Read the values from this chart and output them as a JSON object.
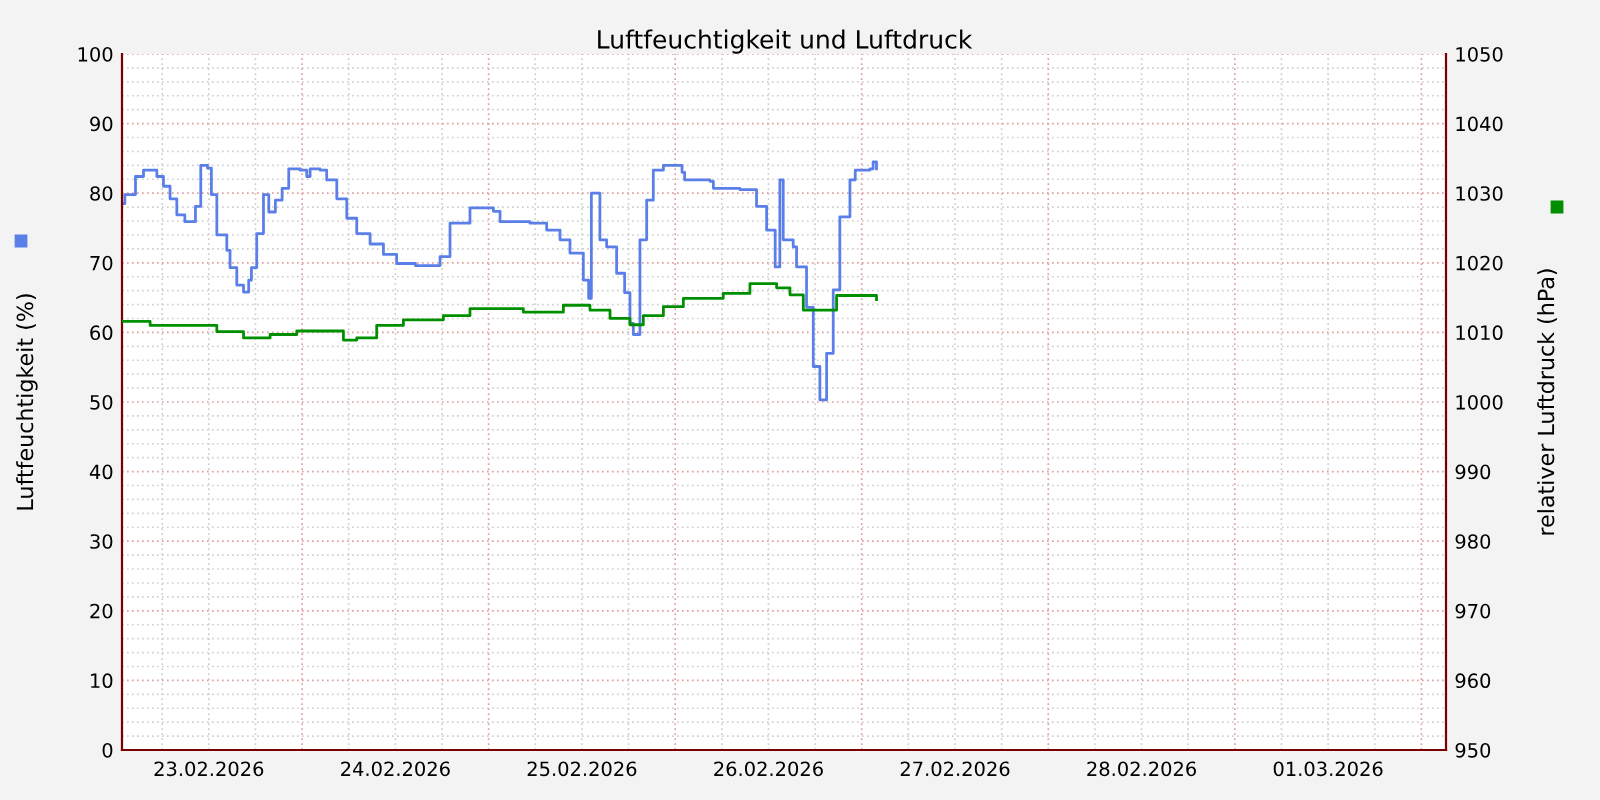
{
  "chart_data": {
    "type": "step",
    "title": "Luftfeuchtigkeit und Luftdruck",
    "ylabel": "Luftfeuchtigkeit (%)",
    "y2label": "relativer Luftdruck (hPa)",
    "xlim": [
      "2026-02-23T00:50",
      "2026-03-02T03:10"
    ],
    "xticks": [
      {
        "value": "2026-02-23T12:00",
        "label": "23.02.2026"
      },
      {
        "value": "2026-02-24T12:00",
        "label": "24.02.2026"
      },
      {
        "value": "2026-02-25T12:00",
        "label": "25.02.2026"
      },
      {
        "value": "2026-02-26T12:00",
        "label": "26.02.2026"
      },
      {
        "value": "2026-02-27T12:00",
        "label": "27.02.2026"
      },
      {
        "value": "2026-02-28T12:00",
        "label": "28.02.2026"
      },
      {
        "value": "2026-03-01T12:00",
        "label": "01.03.2026"
      }
    ],
    "ylim": [
      0,
      100
    ],
    "yticks": [
      0,
      10,
      20,
      30,
      40,
      50,
      60,
      70,
      80,
      90,
      100
    ],
    "y2lim": [
      950,
      1050
    ],
    "y2ticks": [
      950,
      960,
      970,
      980,
      990,
      1000,
      1010,
      1020,
      1030,
      1040,
      1050
    ],
    "grid": true,
    "series": [
      {
        "color": "#5b7fe8",
        "x": [
          "2026-02-23T00:51",
          "2026-02-23T01:12",
          "2026-02-23T02:34",
          "2026-02-23T03:36",
          "2026-02-23T04:17",
          "2026-02-23T05:19",
          "2026-02-23T06:10",
          "2026-02-23T07:01",
          "2026-02-23T07:53",
          "2026-02-23T08:55",
          "2026-02-23T09:46",
          "2026-02-23T10:17",
          "2026-02-23T10:58",
          "2026-02-23T11:50",
          "2026-02-23T12:20",
          "2026-02-23T13:02",
          "2026-02-23T14:19",
          "2026-02-23T14:44",
          "2026-02-23T15:36",
          "2026-02-23T16:28",
          "2026-02-23T17:08",
          "2026-02-23T17:29",
          "2026-02-23T18:10",
          "2026-02-23T19:02",
          "2026-02-23T19:43",
          "2026-02-23T20:34",
          "2026-02-23T21:26",
          "2026-02-23T22:17",
          "2026-02-23T23:45",
          "2026-02-24T00:36",
          "2026-02-24T01:02",
          "2026-02-24T02:19",
          "2026-02-24T03:10",
          "2026-02-24T04:28",
          "2026-02-24T05:45",
          "2026-02-24T07:02",
          "2026-02-24T08:45",
          "2026-02-24T10:28",
          "2026-02-24T12:10",
          "2026-02-24T14:35",
          "2026-02-24T16:53",
          "2026-02-24T17:45",
          "2026-02-24T19:02",
          "2026-02-24T21:36",
          "2026-02-25T00:37",
          "2026-02-25T01:28",
          "2026-02-25T05:19",
          "2026-02-25T07:28",
          "2026-02-25T09:11",
          "2026-02-25T10:28",
          "2026-02-25T12:11",
          "2026-02-25T12:52",
          "2026-02-25T13:13",
          "2026-02-25T13:54",
          "2026-02-25T14:19",
          "2026-02-25T15:11",
          "2026-02-25T16:28",
          "2026-02-25T17:30",
          "2026-02-25T18:11",
          "2026-02-25T18:37",
          "2026-02-25T19:28",
          "2026-02-25T20:20",
          "2026-02-25T21:11",
          "2026-02-25T22:29",
          "2026-02-26T00:53",
          "2026-02-26T01:13",
          "2026-02-26T04:29",
          "2026-02-26T04:55",
          "2026-02-26T08:20",
          "2026-02-26T10:28",
          "2026-02-26T11:46",
          "2026-02-26T12:52",
          "2026-02-26T13:28",
          "2026-02-26T13:54",
          "2026-02-26T15:11",
          "2026-02-26T15:37",
          "2026-02-26T16:54",
          "2026-02-26T17:46",
          "2026-02-26T18:37",
          "2026-02-26T19:29",
          "2026-02-26T20:20",
          "2026-02-26T21:11",
          "2026-02-26T22:29",
          "2026-02-26T23:10",
          "2026-02-27T01:03",
          "2026-02-27T01:28",
          "2026-02-27T01:54"
        ],
        "values": [
          78.5,
          79.8,
          82.4,
          83.3,
          83.3,
          82.4,
          81.0,
          79.2,
          76.9,
          75.9,
          75.9,
          78.1,
          84.0,
          83.6,
          79.8,
          74.0,
          71.8,
          69.3,
          66.8,
          65.8,
          67.5,
          69.3,
          74.2,
          79.8,
          77.3,
          79.0,
          80.7,
          83.5,
          83.3,
          82.4,
          83.5,
          83.3,
          81.9,
          79.2,
          76.4,
          74.2,
          72.7,
          71.2,
          69.9,
          69.6,
          69.6,
          70.9,
          75.7,
          77.9,
          77.4,
          75.9,
          75.7,
          74.7,
          73.3,
          71.4,
          67.5,
          64.9,
          80.0,
          80.0,
          73.3,
          72.3,
          68.5,
          65.7,
          61.3,
          59.7,
          73.3,
          79.0,
          83.3,
          84.0,
          83.0,
          81.9,
          81.7,
          80.7,
          80.5,
          78.1,
          74.7,
          69.4,
          81.9,
          73.3,
          72.3,
          69.4,
          63.6,
          55.1,
          50.3,
          57.0,
          66.1,
          76.6,
          81.9,
          83.3,
          83.5,
          84.5,
          83.5
        ]
      },
      {
        "color": "#008f00",
        "axis": "y2",
        "x": [
          "2026-02-23T00:51",
          "2026-02-23T04:27",
          "2026-02-23T09:36",
          "2026-02-23T13:02",
          "2026-02-23T16:28",
          "2026-02-23T19:53",
          "2026-02-23T23:19",
          "2026-02-24T02:44",
          "2026-02-24T05:19",
          "2026-02-24T07:02",
          "2026-02-24T09:36",
          "2026-02-24T13:02",
          "2026-02-24T18:11",
          "2026-02-24T21:36",
          "2026-02-25T02:45",
          "2026-02-25T04:28",
          "2026-02-25T09:37",
          "2026-02-25T13:02",
          "2026-02-25T15:37",
          "2026-02-25T18:11",
          "2026-02-25T19:54",
          "2026-02-25T22:29",
          "2026-02-26T01:03",
          "2026-02-26T06:11",
          "2026-02-26T09:37",
          "2026-02-26T13:03",
          "2026-02-26T14:46",
          "2026-02-26T16:29",
          "2026-02-26T19:03",
          "2026-02-26T20:46",
          "2026-02-26T23:20",
          "2026-02-27T01:54"
        ],
        "values": [
          1011.6,
          1011.0,
          1011.0,
          1010.1,
          1009.2,
          1009.7,
          1010.2,
          1010.2,
          1008.9,
          1009.2,
          1011.0,
          1011.8,
          1012.4,
          1013.4,
          1013.4,
          1012.9,
          1013.9,
          1013.2,
          1012.0,
          1011.1,
          1012.4,
          1013.7,
          1014.9,
          1015.6,
          1017.0,
          1016.4,
          1015.4,
          1013.2,
          1013.2,
          1015.3,
          1015.3,
          1014.7
        ]
      }
    ]
  }
}
